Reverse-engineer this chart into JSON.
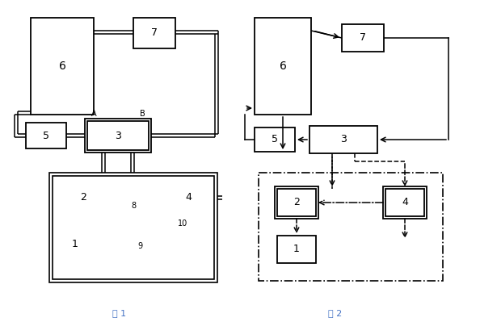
{
  "bg_color": "#ffffff",
  "box_color": "#000000",
  "title1_color": "#4472C4",
  "title2_color": "#4472C4",
  "fig1_title": "图 1",
  "fig2_title": "图 2"
}
